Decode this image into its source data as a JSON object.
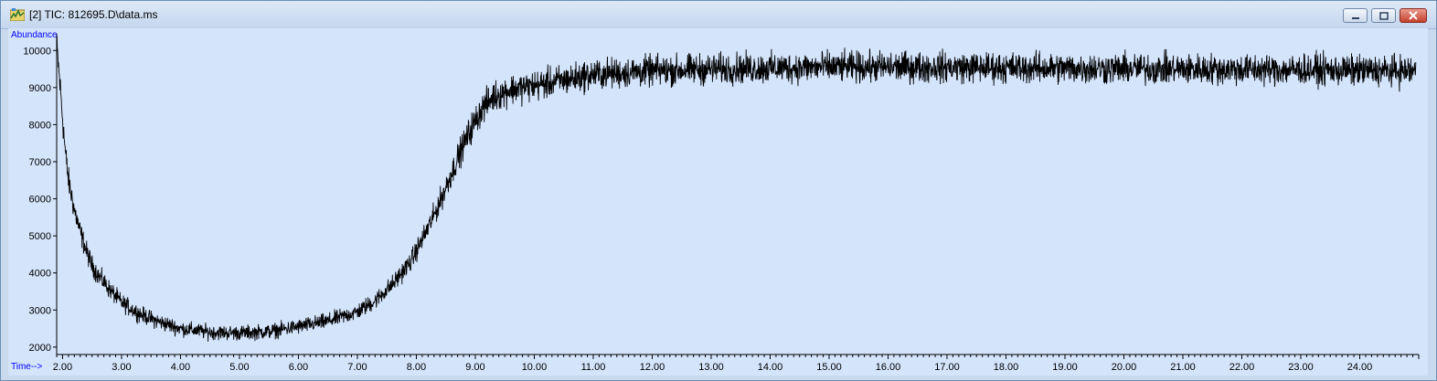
{
  "window": {
    "title": "[2] TIC: 812695.D\\data.ms",
    "icon": "chromatogram-app-icon",
    "controls": [
      "minimize",
      "maximize",
      "close"
    ]
  },
  "chart_data": {
    "type": "line",
    "ylabel": "Abundance",
    "xlabel": "Time-->",
    "xlim": [
      1.9,
      25.0
    ],
    "ylim": [
      1800,
      10450
    ],
    "x_ticks": [
      "2.00",
      "3.00",
      "4.00",
      "5.00",
      "6.00",
      "7.00",
      "8.00",
      "9.00",
      "10.00",
      "11.00",
      "12.00",
      "13.00",
      "14.00",
      "15.00",
      "16.00",
      "17.00",
      "18.00",
      "19.00",
      "20.00",
      "21.00",
      "22.00",
      "23.00",
      "24.00"
    ],
    "y_ticks": [
      "2000",
      "3000",
      "4000",
      "5000",
      "6000",
      "7000",
      "8000",
      "9000",
      "10000"
    ],
    "series": [
      {
        "color": "#000000",
        "noise_amplitude": 450,
        "x": [
          1.9,
          1.95,
          2.0,
          2.05,
          2.1,
          2.2,
          2.3,
          2.4,
          2.5,
          2.6,
          2.8,
          3.0,
          3.3,
          3.6,
          4.0,
          4.5,
          5.0,
          5.5,
          6.0,
          6.5,
          7.0,
          7.3,
          7.6,
          7.9,
          8.1,
          8.3,
          8.5,
          8.7,
          8.9,
          9.1,
          9.3,
          9.6,
          10.0,
          10.5,
          11.0,
          12.0,
          13.0,
          15.0,
          17.0,
          19.0,
          21.0,
          23.0,
          24.5,
          24.95
        ],
        "y": [
          10150,
          9200,
          8200,
          7200,
          6500,
          5700,
          5100,
          4600,
          4200,
          3950,
          3550,
          3200,
          2900,
          2700,
          2500,
          2400,
          2380,
          2420,
          2550,
          2700,
          2950,
          3250,
          3700,
          4300,
          4900,
          5550,
          6300,
          7100,
          7800,
          8400,
          8750,
          8950,
          9050,
          9200,
          9350,
          9450,
          9500,
          9550,
          9550,
          9520,
          9500,
          9480,
          9450,
          9450
        ]
      }
    ]
  }
}
